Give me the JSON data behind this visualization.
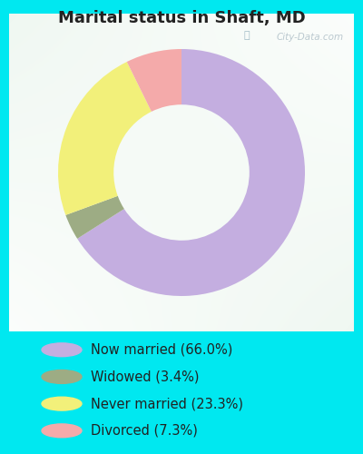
{
  "title": "Marital status in Shaft, MD",
  "slices": [
    66.0,
    3.4,
    23.3,
    7.3
  ],
  "labels": [
    "Now married (66.0%)",
    "Widowed (3.4%)",
    "Never married (23.3%)",
    "Divorced (7.3%)"
  ],
  "colors": [
    "#c4aee0",
    "#9dac84",
    "#f2f07a",
    "#f4aaaa"
  ],
  "legend_colors": [
    "#c4aee0",
    "#9dac84",
    "#f2f07a",
    "#f4aaaa"
  ],
  "bg_outer": "#00e8f0",
  "bg_chart_tl": "#daf0e8",
  "bg_chart_br": "#e8f0d8",
  "watermark": "City-Data.com",
  "donut_width": 0.45,
  "start_angle": 90
}
